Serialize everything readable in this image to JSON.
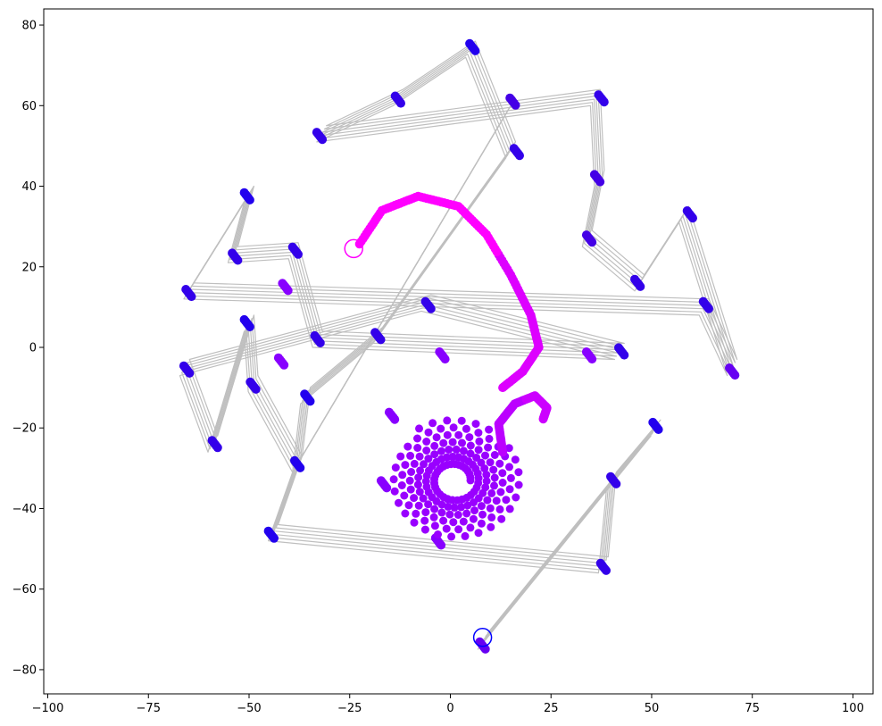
{
  "chart_data": {
    "type": "scatter",
    "title": "",
    "xlabel": "",
    "ylabel": "",
    "xlim": [
      -101,
      105
    ],
    "ylim": [
      -86,
      84
    ],
    "x_ticks": [
      "−100",
      "−75",
      "−50",
      "−25",
      "0",
      "25",
      "50",
      "75",
      "100"
    ],
    "x_tick_values": [
      -100,
      -75,
      -50,
      -25,
      0,
      25,
      50,
      75,
      100
    ],
    "y_ticks": [
      "−80",
      "−60",
      "−40",
      "−20",
      "0",
      "20",
      "40",
      "60",
      "80"
    ],
    "y_tick_values": [
      -80,
      -60,
      -40,
      -20,
      0,
      20,
      40,
      60,
      80
    ],
    "grid": false,
    "legend": "none",
    "colors": {
      "trail": "#bfbfbf",
      "start": "#0000ff",
      "mid": "#9900ff",
      "end": "#ff00ff"
    },
    "markers": [
      {
        "role": "start",
        "x": 8,
        "y": -72,
        "color": "#0000ff"
      },
      {
        "role": "end",
        "x": -24,
        "y": 24.5,
        "color": "#ff00ff"
      }
    ],
    "waypoints": [
      {
        "x": 8,
        "y": -73
      },
      {
        "x": 51,
        "y": -20
      },
      {
        "x": 40,
        "y": -33
      },
      {
        "x": 38,
        "y": -54
      },
      {
        "x": -44,
        "y": -46
      },
      {
        "x": -38,
        "y": -29
      },
      {
        "x": -36,
        "y": -12
      },
      {
        "x": -18,
        "y": 3
      },
      {
        "x": 15,
        "y": 49
      },
      {
        "x": 5,
        "y": 74
      },
      {
        "x": -13,
        "y": 62
      },
      {
        "x": -32,
        "y": 53
      },
      {
        "x": 36,
        "y": 62
      },
      {
        "x": 37,
        "y": 42
      },
      {
        "x": 34,
        "y": 27
      },
      {
        "x": 47,
        "y": 16
      },
      {
        "x": 58,
        "y": 33
      },
      {
        "x": 70,
        "y": -5
      },
      {
        "x": 63,
        "y": 10
      },
      {
        "x": -65,
        "y": 14
      },
      {
        "x": -50,
        "y": 38
      },
      {
        "x": -54,
        "y": 23
      },
      {
        "x": -39,
        "y": 24
      },
      {
        "x": -33,
        "y": 2
      },
      {
        "x": 42,
        "y": -1
      },
      {
        "x": -6,
        "y": 11
      },
      {
        "x": -66,
        "y": -5
      },
      {
        "x": -59,
        "y": -24
      },
      {
        "x": -50,
        "y": 6
      },
      {
        "x": -49,
        "y": -9
      },
      {
        "x": -38,
        "y": -29
      },
      {
        "x": 15,
        "y": 60
      }
    ],
    "point_clusters": [
      {
        "x": 5.5,
        "y": 74.5,
        "color": "#2200ee"
      },
      {
        "x": 15.5,
        "y": 61,
        "color": "#4400e6"
      },
      {
        "x": -13,
        "y": 61.5,
        "color": "#3300ea"
      },
      {
        "x": -32.5,
        "y": 52.5,
        "color": "#3300ea"
      },
      {
        "x": 37.5,
        "y": 61.8,
        "color": "#3300ea"
      },
      {
        "x": 16.5,
        "y": 48.5,
        "color": "#3300ea"
      },
      {
        "x": 36.5,
        "y": 42,
        "color": "#4400e6"
      },
      {
        "x": -50.5,
        "y": 37.5,
        "color": "#2200ee"
      },
      {
        "x": 59.5,
        "y": 33,
        "color": "#3300ea"
      },
      {
        "x": 34.5,
        "y": 27,
        "color": "#4400e6"
      },
      {
        "x": -38.5,
        "y": 24,
        "color": "#3300ea"
      },
      {
        "x": -53.5,
        "y": 22.5,
        "color": "#3300ea"
      },
      {
        "x": -41,
        "y": 15,
        "color": "#8800ff"
      },
      {
        "x": 46.5,
        "y": 16,
        "color": "#3300ea"
      },
      {
        "x": -65,
        "y": 13.5,
        "color": "#3300ea"
      },
      {
        "x": 63.5,
        "y": 10.5,
        "color": "#3300ea"
      },
      {
        "x": -5.5,
        "y": 10.5,
        "color": "#3300ea"
      },
      {
        "x": -50.5,
        "y": 6,
        "color": "#2200ee"
      },
      {
        "x": -18,
        "y": 2.8,
        "color": "#3300ea"
      },
      {
        "x": -33,
        "y": 2,
        "color": "#3300ea"
      },
      {
        "x": 42.5,
        "y": -1,
        "color": "#3300ea"
      },
      {
        "x": -2,
        "y": -2,
        "color": "#8800ff"
      },
      {
        "x": 34.5,
        "y": -2,
        "color": "#8800ff"
      },
      {
        "x": -42,
        "y": -3.5,
        "color": "#8800ff"
      },
      {
        "x": 70,
        "y": -6,
        "color": "#6600f2"
      },
      {
        "x": -65.5,
        "y": -5.5,
        "color": "#3300ea"
      },
      {
        "x": -49,
        "y": -9.5,
        "color": "#3300ea"
      },
      {
        "x": -35.5,
        "y": -12.5,
        "color": "#2200ee"
      },
      {
        "x": -14.5,
        "y": -17,
        "color": "#8800ff"
      },
      {
        "x": 51,
        "y": -19.5,
        "color": "#2200ee"
      },
      {
        "x": -58.5,
        "y": -24,
        "color": "#3300ea"
      },
      {
        "x": -38,
        "y": -29,
        "color": "#2200ee"
      },
      {
        "x": 40.5,
        "y": -33,
        "color": "#3300ea"
      },
      {
        "x": -16.5,
        "y": -34,
        "color": "#8800ff"
      },
      {
        "x": -44.5,
        "y": -46.5,
        "color": "#2200ee"
      },
      {
        "x": -3,
        "y": -48.2,
        "color": "#8800ff"
      },
      {
        "x": 38,
        "y": -54.5,
        "color": "#3300ea"
      },
      {
        "x": 8,
        "y": -74,
        "color": "#6600f2"
      }
    ],
    "inner_spiral": {
      "center_x": 1,
      "center_y": -33,
      "color": "#9900ff"
    },
    "outer_path": [
      {
        "x": 13,
        "y": -10
      },
      {
        "x": 18,
        "y": -6
      },
      {
        "x": 22,
        "y": 0
      },
      {
        "x": 20,
        "y": 8
      },
      {
        "x": 15,
        "y": 18
      },
      {
        "x": 9,
        "y": 28
      },
      {
        "x": 2,
        "y": 35
      },
      {
        "x": -8,
        "y": 37.5
      },
      {
        "x": -17,
        "y": 34
      },
      {
        "x": -23,
        "y": 25
      }
    ],
    "loop_path": [
      {
        "x": 13,
        "y": -26
      },
      {
        "x": 12,
        "y": -19
      },
      {
        "x": 16,
        "y": -14
      },
      {
        "x": 21,
        "y": -12
      },
      {
        "x": 24,
        "y": -15
      },
      {
        "x": 23,
        "y": -18
      }
    ]
  }
}
